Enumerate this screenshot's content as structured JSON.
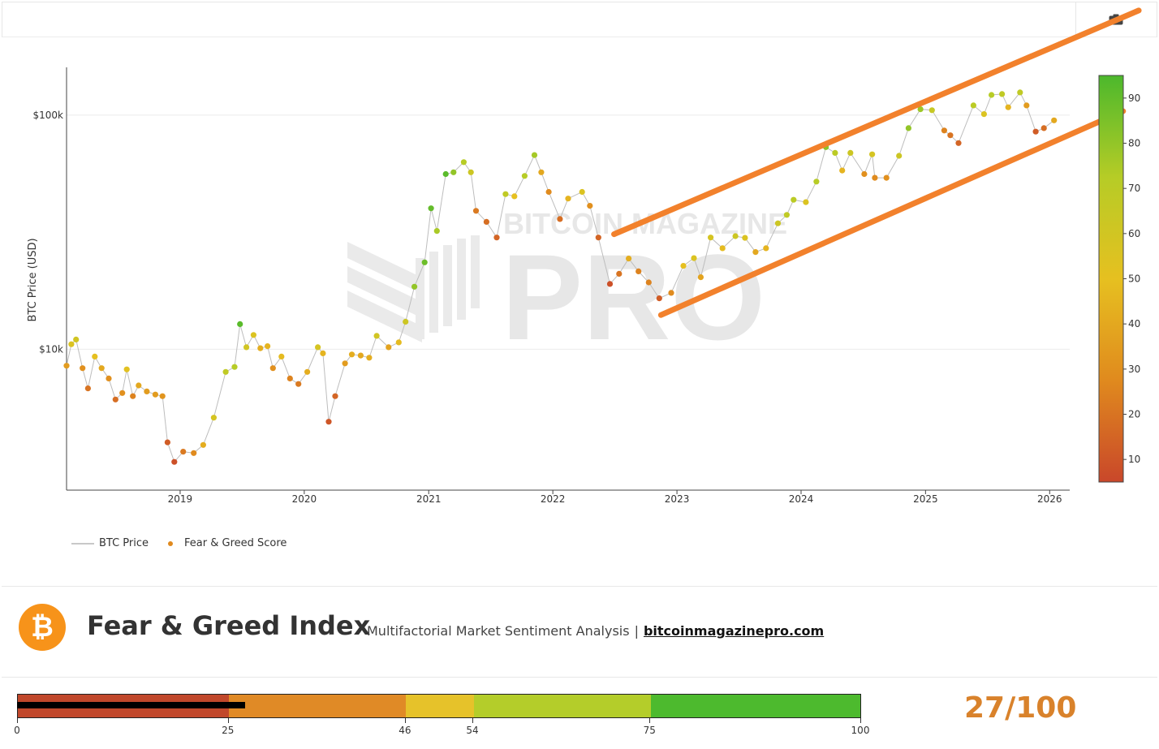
{
  "chart_data": {
    "type": "scatter",
    "ylabel": "BTC Price (USD)",
    "yscale": "log",
    "ylim": [
      2500,
      160000
    ],
    "xlim": [
      "2018-02-01",
      "2026-03-01"
    ],
    "x_ticks": [
      "2019",
      "2020",
      "2021",
      "2022",
      "2023",
      "2024",
      "2025",
      "2026"
    ],
    "y_ticks": [
      {
        "value": 10000,
        "label": "$10k"
      },
      {
        "value": 100000,
        "label": "$100k"
      }
    ],
    "colorbar": {
      "range": [
        5,
        95
      ],
      "ticks": [
        10,
        20,
        30,
        40,
        50,
        60,
        70,
        80,
        90
      ],
      "colors": [
        "#c9472a",
        "#e08a1e",
        "#e6c020",
        "#b6cc26",
        "#4cb82c"
      ]
    },
    "legend": [
      {
        "name": "BTC Price",
        "kind": "line"
      },
      {
        "name": "Fear & Greed Score",
        "kind": "marker"
      }
    ],
    "points": [
      [
        "2018-02-01",
        8500,
        35
      ],
      [
        "2018-02-15",
        10500,
        55
      ],
      [
        "2018-03-01",
        11000,
        60
      ],
      [
        "2018-03-20",
        8300,
        30
      ],
      [
        "2018-04-05",
        6800,
        20
      ],
      [
        "2018-04-25",
        9300,
        50
      ],
      [
        "2018-05-15",
        8300,
        40
      ],
      [
        "2018-06-05",
        7500,
        30
      ],
      [
        "2018-06-25",
        6100,
        18
      ],
      [
        "2018-07-15",
        6500,
        30
      ],
      [
        "2018-07-28",
        8200,
        52
      ],
      [
        "2018-08-15",
        6300,
        25
      ],
      [
        "2018-09-01",
        7000,
        40
      ],
      [
        "2018-09-25",
        6600,
        35
      ],
      [
        "2018-10-20",
        6400,
        35
      ],
      [
        "2018-11-10",
        6300,
        32
      ],
      [
        "2018-11-25",
        4000,
        12
      ],
      [
        "2018-12-15",
        3300,
        8
      ],
      [
        "2019-01-10",
        3650,
        22
      ],
      [
        "2019-02-10",
        3600,
        28
      ],
      [
        "2019-03-10",
        3900,
        42
      ],
      [
        "2019-04-10",
        5100,
        58
      ],
      [
        "2019-05-15",
        8000,
        68
      ],
      [
        "2019-06-10",
        8400,
        72
      ],
      [
        "2019-06-26",
        12800,
        92
      ],
      [
        "2019-07-15",
        10200,
        60
      ],
      [
        "2019-08-05",
        11500,
        55
      ],
      [
        "2019-08-25",
        10100,
        42
      ],
      [
        "2019-09-15",
        10300,
        45
      ],
      [
        "2019-10-01",
        8300,
        30
      ],
      [
        "2019-10-26",
        9300,
        48
      ],
      [
        "2019-11-20",
        7500,
        25
      ],
      [
        "2019-12-15",
        7100,
        22
      ],
      [
        "2020-01-10",
        8000,
        42
      ],
      [
        "2020-02-10",
        10200,
        58
      ],
      [
        "2020-02-25",
        9600,
        45
      ],
      [
        "2020-03-13",
        4900,
        10
      ],
      [
        "2020-04-01",
        6300,
        15
      ],
      [
        "2020-04-30",
        8700,
        35
      ],
      [
        "2020-05-20",
        9500,
        42
      ],
      [
        "2020-06-15",
        9400,
        40
      ],
      [
        "2020-07-10",
        9200,
        42
      ],
      [
        "2020-08-01",
        11400,
        60
      ],
      [
        "2020-09-05",
        10200,
        38
      ],
      [
        "2020-10-05",
        10700,
        48
      ],
      [
        "2020-10-25",
        13100,
        62
      ],
      [
        "2020-11-20",
        18500,
        80
      ],
      [
        "2020-12-20",
        23500,
        88
      ],
      [
        "2021-01-08",
        40000,
        90
      ],
      [
        "2021-01-25",
        32000,
        75
      ],
      [
        "2021-02-20",
        56000,
        92
      ],
      [
        "2021-03-15",
        57000,
        80
      ],
      [
        "2021-04-14",
        63000,
        72
      ],
      [
        "2021-05-05",
        57000,
        62
      ],
      [
        "2021-05-20",
        39000,
        22
      ],
      [
        "2021-06-20",
        35000,
        18
      ],
      [
        "2021-07-20",
        30000,
        15
      ],
      [
        "2021-08-15",
        46000,
        68
      ],
      [
        "2021-09-10",
        45000,
        50
      ],
      [
        "2021-10-10",
        55000,
        72
      ],
      [
        "2021-11-08",
        67500,
        76
      ],
      [
        "2021-11-28",
        57000,
        40
      ],
      [
        "2021-12-20",
        47000,
        28
      ],
      [
        "2022-01-22",
        36000,
        18
      ],
      [
        "2022-02-15",
        44000,
        45
      ],
      [
        "2022-03-28",
        47000,
        55
      ],
      [
        "2022-04-20",
        41000,
        30
      ],
      [
        "2022-05-15",
        30000,
        15
      ],
      [
        "2022-06-18",
        19000,
        8
      ],
      [
        "2022-07-15",
        21000,
        20
      ],
      [
        "2022-08-12",
        24400,
        42
      ],
      [
        "2022-09-10",
        21500,
        25
      ],
      [
        "2022-10-10",
        19300,
        25
      ],
      [
        "2022-11-10",
        16500,
        12
      ],
      [
        "2022-12-15",
        17400,
        28
      ],
      [
        "2023-01-20",
        22700,
        50
      ],
      [
        "2023-02-20",
        24500,
        55
      ],
      [
        "2023-03-12",
        20300,
        38
      ],
      [
        "2023-04-10",
        30000,
        58
      ],
      [
        "2023-05-15",
        27000,
        48
      ],
      [
        "2023-06-22",
        30400,
        62
      ],
      [
        "2023-07-20",
        29900,
        55
      ],
      [
        "2023-08-20",
        26000,
        40
      ],
      [
        "2023-09-20",
        27000,
        45
      ],
      [
        "2023-10-25",
        34500,
        62
      ],
      [
        "2023-11-20",
        37500,
        68
      ],
      [
        "2023-12-10",
        43500,
        70
      ],
      [
        "2024-01-15",
        42500,
        55
      ],
      [
        "2024-02-15",
        52000,
        72
      ],
      [
        "2024-03-14",
        73000,
        82
      ],
      [
        "2024-04-10",
        69000,
        70
      ],
      [
        "2024-05-01",
        58000,
        45
      ],
      [
        "2024-05-25",
        69000,
        62
      ],
      [
        "2024-07-05",
        56000,
        30
      ],
      [
        "2024-07-28",
        68000,
        58
      ],
      [
        "2024-08-05",
        54000,
        28
      ],
      [
        "2024-09-08",
        54000,
        30
      ],
      [
        "2024-10-15",
        67000,
        62
      ],
      [
        "2024-11-12",
        88000,
        80
      ],
      [
        "2024-12-17",
        106000,
        78
      ],
      [
        "2025-01-20",
        105000,
        65
      ],
      [
        "2025-02-25",
        86000,
        25
      ],
      [
        "2025-03-15",
        82000,
        20
      ],
      [
        "2025-04-08",
        76000,
        15
      ],
      [
        "2025-05-22",
        110000,
        70
      ],
      [
        "2025-06-22",
        101000,
        55
      ],
      [
        "2025-07-14",
        122000,
        72
      ],
      [
        "2025-08-14",
        123000,
        68
      ],
      [
        "2025-09-01",
        108000,
        45
      ],
      [
        "2025-10-06",
        125000,
        68
      ],
      [
        "2025-10-25",
        110000,
        35
      ],
      [
        "2025-11-21",
        85000,
        12
      ],
      [
        "2025-12-15",
        88000,
        18
      ],
      [
        "2026-01-14",
        95000,
        40
      ]
    ],
    "channel_lines": [
      {
        "from": [
          "2022-06-30",
          31000
        ],
        "to": [
          "2026-09-20",
          280000
        ]
      },
      {
        "from": [
          "2022-11-15",
          14000
        ],
        "to": [
          "2026-08-05",
          104000
        ]
      }
    ]
  },
  "legend_labels": {
    "price": "BTC Price",
    "score": "Fear & Greed Score"
  },
  "header": {
    "logo_glyph": "₿",
    "title": "Fear & Greed Index",
    "subtitle": "Multifactorial Market Sentiment Analysis",
    "separator": "|",
    "link": "bitcoinmagazinepro.com"
  },
  "watermark": {
    "line1": "BITCOIN MAGAZINE",
    "line2": "PRO"
  },
  "gauge": {
    "segments": [
      {
        "from": 0,
        "to": 25,
        "color": "#c1482b"
      },
      {
        "from": 25,
        "to": 46,
        "color": "#e08a26"
      },
      {
        "from": 46,
        "to": 54,
        "color": "#e6c22a"
      },
      {
        "from": 54,
        "to": 75,
        "color": "#b4cd2a"
      },
      {
        "from": 75,
        "to": 100,
        "color": "#4dba2e"
      }
    ],
    "ticks": [
      "0",
      "25",
      "46",
      "54",
      "75",
      "100"
    ],
    "value": 27,
    "score_text": "27/100",
    "score_color": "#d9822b"
  },
  "toolbar": {
    "camera_icon": "camera-icon"
  }
}
